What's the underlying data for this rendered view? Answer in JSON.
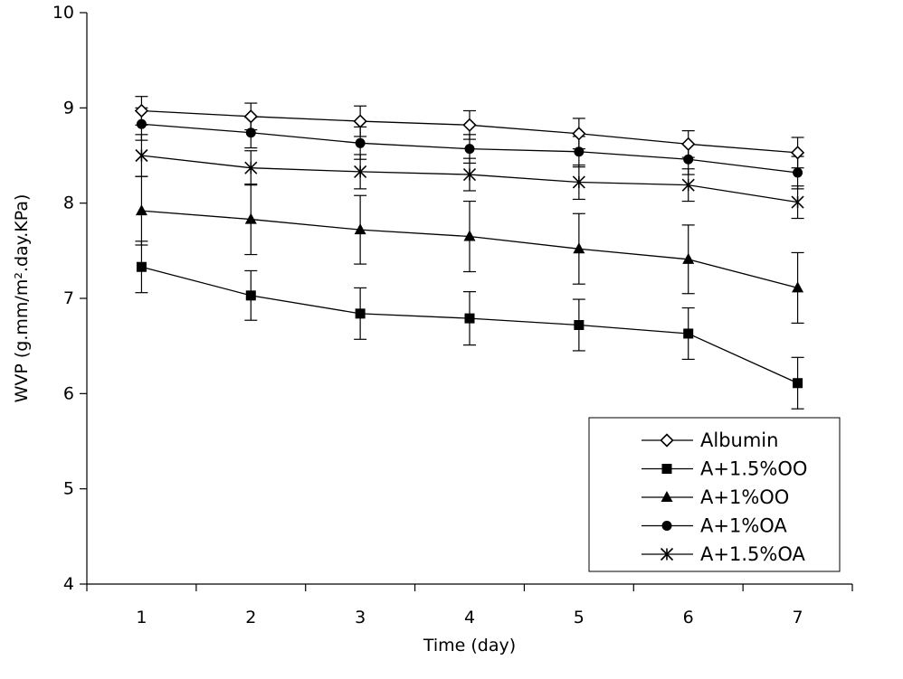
{
  "chart_data": {
    "type": "line",
    "title": "",
    "xlabel": "Time (day)",
    "ylabel": "WVP (g.mm/m².day.KPa)",
    "categories": [
      "1",
      "2",
      "3",
      "4",
      "5",
      "6",
      "7"
    ],
    "ylim": [
      4,
      10
    ],
    "yticks": [
      "4",
      "5",
      "6",
      "7",
      "8",
      "9",
      "10"
    ],
    "grid": false,
    "legend_position": "bottom-right",
    "line_color": "#000000",
    "series": [
      {
        "name": "Albumin",
        "marker": "open-diamond",
        "values": [
          8.97,
          8.91,
          8.86,
          8.82,
          8.73,
          8.62,
          8.53
        ],
        "errors": [
          0.15,
          0.14,
          0.16,
          0.15,
          0.16,
          0.14,
          0.16
        ]
      },
      {
        "name": "A+1.5%OO",
        "marker": "filled-square",
        "values": [
          7.33,
          7.03,
          6.84,
          6.79,
          6.72,
          6.63,
          6.11
        ],
        "errors": [
          0.27,
          0.26,
          0.27,
          0.28,
          0.27,
          0.27,
          0.27
        ]
      },
      {
        "name": "A+1%OO",
        "marker": "filled-triangle",
        "values": [
          7.92,
          7.83,
          7.72,
          7.65,
          7.52,
          7.41,
          7.11
        ],
        "errors": [
          0.36,
          0.37,
          0.36,
          0.37,
          0.37,
          0.36,
          0.37
        ]
      },
      {
        "name": "A+1%OA",
        "marker": "filled-circle",
        "values": [
          8.83,
          8.74,
          8.63,
          8.57,
          8.54,
          8.46,
          8.32
        ],
        "errors": [
          0.17,
          0.16,
          0.17,
          0.15,
          0.16,
          0.16,
          0.17
        ]
      },
      {
        "name": "A+1.5%OA",
        "marker": "asterisk",
        "values": [
          8.5,
          8.37,
          8.33,
          8.3,
          8.22,
          8.19,
          8.01
        ],
        "errors": [
          0.22,
          0.18,
          0.18,
          0.17,
          0.18,
          0.17,
          0.17
        ]
      }
    ]
  }
}
